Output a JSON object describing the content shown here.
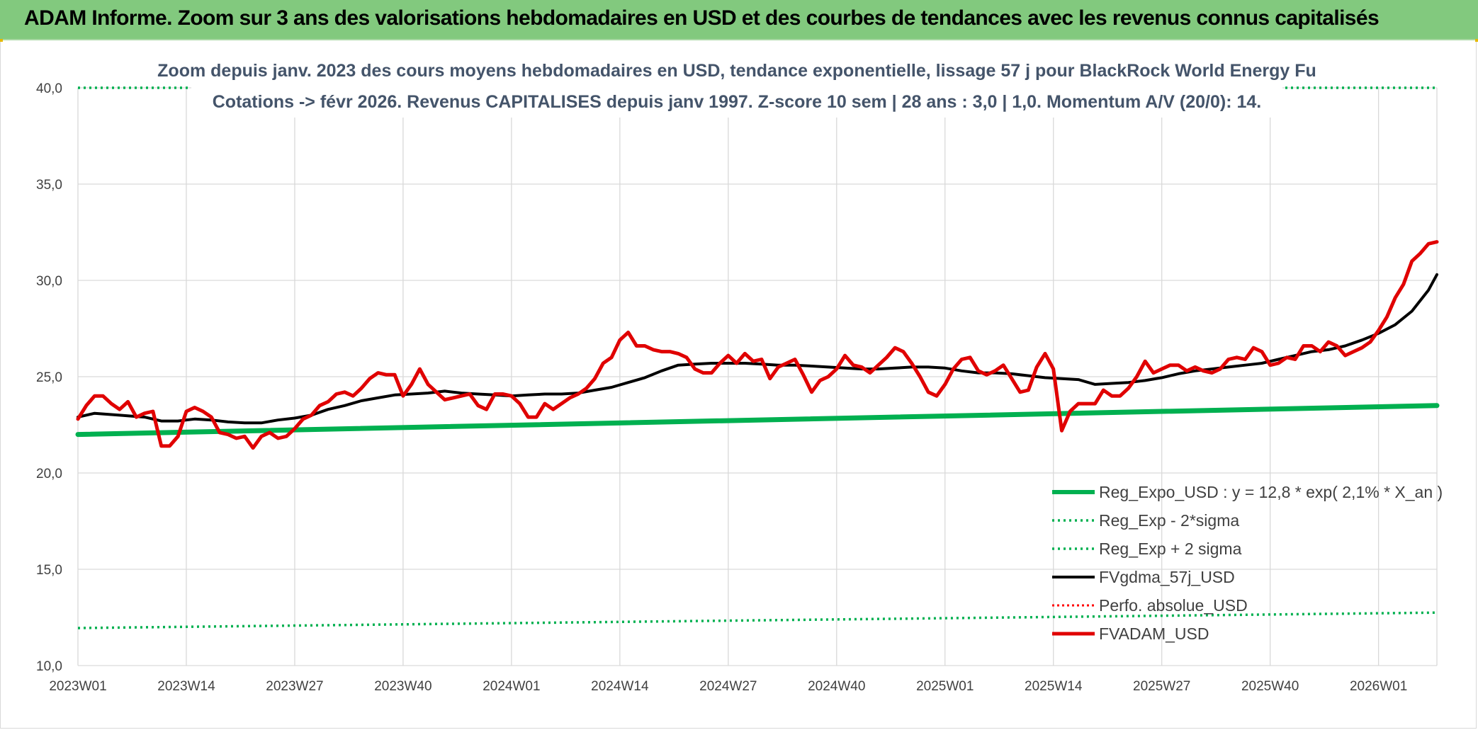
{
  "header": {
    "title": "ADAM Informe. Zoom sur 3 ans des valorisations hebdomadaires en USD et des courbes de tendances avec les revenus connus capitalisés"
  },
  "colors": {
    "banner": "#82c97e",
    "reg_expo": "#00b050",
    "sigma": "#00b050",
    "gdma": "#000000",
    "perfo": "#ff0000",
    "fvadam": "#e00000"
  },
  "chart_data": {
    "type": "line",
    "title_lines": [
      "Zoom depuis janv. 2023 des cours moyens hebdomadaires en USD, tendance exponentielle, lissage 57 j pour BlackRock World Energy Fu",
      "Cotations -> févr 2026. Revenus CAPITALISES depuis janv 1997. Z-score 10 sem | 28 ans : 3,0 | 1,0. Momentum A/V (20/0): 14."
    ],
    "xlabel": "",
    "ylabel": "",
    "ylim": [
      10,
      40
    ],
    "yticks": [
      "10,0",
      "15,0",
      "20,0",
      "25,0",
      "30,0",
      "35,0",
      "40,0"
    ],
    "xticks": [
      "2023W01",
      "2023W14",
      "2023W27",
      "2023W40",
      "2024W01",
      "2024W14",
      "2024W27",
      "2024W40",
      "2025W01",
      "2025W14",
      "2025W27",
      "2025W40",
      "2026W01"
    ],
    "week_count": 164,
    "grid": true,
    "legend_position": "bottom-right",
    "series": [
      {
        "name": "Reg_Expo_USD : y = 12,8 * exp( 2,1% *  X_an )",
        "style": "solid-thick",
        "points": [
          [
            0,
            22.0
          ],
          [
            163,
            23.5
          ]
        ]
      },
      {
        "name": "Reg_Exp - 2*sigma",
        "style": "dotted",
        "points": [
          [
            0,
            11.95
          ],
          [
            163,
            12.75
          ]
        ]
      },
      {
        "name": "Reg_Exp + 2 sigma",
        "style": "dotted",
        "points": [
          [
            0,
            40.0
          ],
          [
            163,
            40.0
          ]
        ]
      },
      {
        "name": "FVgdma_57j_USD",
        "style": "solid",
        "points": [
          [
            0,
            22.9
          ],
          [
            2,
            23.1
          ],
          [
            5,
            23.0
          ],
          [
            8,
            22.9
          ],
          [
            10,
            22.7
          ],
          [
            12,
            22.7
          ],
          [
            14,
            22.8
          ],
          [
            16,
            22.75
          ],
          [
            18,
            22.65
          ],
          [
            20,
            22.6
          ],
          [
            22,
            22.6
          ],
          [
            24,
            22.75
          ],
          [
            26,
            22.85
          ],
          [
            28,
            23.0
          ],
          [
            30,
            23.3
          ],
          [
            32,
            23.5
          ],
          [
            34,
            23.75
          ],
          [
            36,
            23.9
          ],
          [
            38,
            24.05
          ],
          [
            40,
            24.1
          ],
          [
            42,
            24.15
          ],
          [
            44,
            24.25
          ],
          [
            46,
            24.15
          ],
          [
            48,
            24.1
          ],
          [
            50,
            24.05
          ],
          [
            52,
            24.0
          ],
          [
            54,
            24.05
          ],
          [
            56,
            24.1
          ],
          [
            58,
            24.1
          ],
          [
            60,
            24.15
          ],
          [
            62,
            24.3
          ],
          [
            64,
            24.45
          ],
          [
            66,
            24.7
          ],
          [
            68,
            24.95
          ],
          [
            70,
            25.3
          ],
          [
            72,
            25.6
          ],
          [
            74,
            25.65
          ],
          [
            76,
            25.7
          ],
          [
            78,
            25.7
          ],
          [
            80,
            25.7
          ],
          [
            82,
            25.65
          ],
          [
            84,
            25.6
          ],
          [
            86,
            25.6
          ],
          [
            88,
            25.55
          ],
          [
            90,
            25.5
          ],
          [
            92,
            25.45
          ],
          [
            94,
            25.4
          ],
          [
            96,
            25.4
          ],
          [
            98,
            25.45
          ],
          [
            100,
            25.5
          ],
          [
            102,
            25.5
          ],
          [
            104,
            25.45
          ],
          [
            106,
            25.3
          ],
          [
            108,
            25.2
          ],
          [
            110,
            25.2
          ],
          [
            112,
            25.15
          ],
          [
            114,
            25.05
          ],
          [
            116,
            24.95
          ],
          [
            118,
            24.9
          ],
          [
            120,
            24.85
          ],
          [
            122,
            24.6
          ],
          [
            124,
            24.65
          ],
          [
            126,
            24.7
          ],
          [
            128,
            24.8
          ],
          [
            130,
            24.95
          ],
          [
            132,
            25.15
          ],
          [
            134,
            25.3
          ],
          [
            136,
            25.4
          ],
          [
            138,
            25.5
          ],
          [
            140,
            25.6
          ],
          [
            142,
            25.7
          ],
          [
            144,
            25.9
          ],
          [
            146,
            26.1
          ],
          [
            148,
            26.3
          ],
          [
            150,
            26.4
          ],
          [
            152,
            26.6
          ],
          [
            154,
            26.9
          ],
          [
            156,
            27.25
          ],
          [
            158,
            27.7
          ],
          [
            160,
            28.4
          ],
          [
            162,
            29.5
          ],
          [
            163,
            30.3
          ]
        ]
      },
      {
        "name": "Perfo. absolue_USD",
        "style": "dotted-red",
        "points": []
      },
      {
        "name": "FVADAM_USD",
        "style": "solid-thick-red",
        "points": [
          [
            0,
            22.8
          ],
          [
            1,
            23.5
          ],
          [
            2,
            24.0
          ],
          [
            3,
            24.0
          ],
          [
            4,
            23.6
          ],
          [
            5,
            23.3
          ],
          [
            6,
            23.7
          ],
          [
            7,
            22.9
          ],
          [
            8,
            23.1
          ],
          [
            9,
            23.2
          ],
          [
            10,
            21.4
          ],
          [
            11,
            21.4
          ],
          [
            12,
            21.9
          ],
          [
            13,
            23.2
          ],
          [
            14,
            23.4
          ],
          [
            15,
            23.2
          ],
          [
            16,
            22.9
          ],
          [
            17,
            22.1
          ],
          [
            18,
            22.0
          ],
          [
            19,
            21.8
          ],
          [
            20,
            21.9
          ],
          [
            21,
            21.3
          ],
          [
            22,
            21.9
          ],
          [
            23,
            22.1
          ],
          [
            24,
            21.8
          ],
          [
            25,
            21.9
          ],
          [
            26,
            22.3
          ],
          [
            27,
            22.8
          ],
          [
            28,
            23.0
          ],
          [
            29,
            23.5
          ],
          [
            30,
            23.7
          ],
          [
            31,
            24.1
          ],
          [
            32,
            24.2
          ],
          [
            33,
            24.0
          ],
          [
            34,
            24.4
          ],
          [
            35,
            24.9
          ],
          [
            36,
            25.2
          ],
          [
            37,
            25.1
          ],
          [
            38,
            25.1
          ],
          [
            39,
            24.0
          ],
          [
            40,
            24.6
          ],
          [
            41,
            25.4
          ],
          [
            42,
            24.6
          ],
          [
            43,
            24.2
          ],
          [
            44,
            23.8
          ],
          [
            45,
            23.9
          ],
          [
            46,
            24.0
          ],
          [
            47,
            24.1
          ],
          [
            48,
            23.5
          ],
          [
            49,
            23.3
          ],
          [
            50,
            24.1
          ],
          [
            51,
            24.1
          ],
          [
            52,
            24.0
          ],
          [
            53,
            23.6
          ],
          [
            54,
            22.9
          ],
          [
            55,
            22.9
          ],
          [
            56,
            23.6
          ],
          [
            57,
            23.3
          ],
          [
            58,
            23.6
          ],
          [
            59,
            23.9
          ],
          [
            60,
            24.1
          ],
          [
            61,
            24.4
          ],
          [
            62,
            24.9
          ],
          [
            63,
            25.7
          ],
          [
            64,
            26.0
          ],
          [
            65,
            26.9
          ],
          [
            66,
            27.3
          ],
          [
            67,
            26.6
          ],
          [
            68,
            26.6
          ],
          [
            69,
            26.4
          ],
          [
            70,
            26.3
          ],
          [
            71,
            26.3
          ],
          [
            72,
            26.2
          ],
          [
            73,
            26.0
          ],
          [
            74,
            25.4
          ],
          [
            75,
            25.2
          ],
          [
            76,
            25.2
          ],
          [
            77,
            25.7
          ],
          [
            78,
            26.1
          ],
          [
            79,
            25.7
          ],
          [
            80,
            26.2
          ],
          [
            81,
            25.8
          ],
          [
            82,
            25.9
          ],
          [
            83,
            24.9
          ],
          [
            84,
            25.5
          ],
          [
            85,
            25.7
          ],
          [
            86,
            25.9
          ],
          [
            87,
            25.1
          ],
          [
            88,
            24.2
          ],
          [
            89,
            24.8
          ],
          [
            90,
            25.0
          ],
          [
            91,
            25.4
          ],
          [
            92,
            26.1
          ],
          [
            93,
            25.6
          ],
          [
            94,
            25.5
          ],
          [
            95,
            25.2
          ],
          [
            96,
            25.6
          ],
          [
            97,
            26.0
          ],
          [
            98,
            26.5
          ],
          [
            99,
            26.3
          ],
          [
            100,
            25.7
          ],
          [
            101,
            25.0
          ],
          [
            102,
            24.2
          ],
          [
            103,
            24.0
          ],
          [
            104,
            24.6
          ],
          [
            105,
            25.4
          ],
          [
            106,
            25.9
          ],
          [
            107,
            26.0
          ],
          [
            108,
            25.3
          ],
          [
            109,
            25.1
          ],
          [
            110,
            25.3
          ],
          [
            111,
            25.6
          ],
          [
            112,
            24.9
          ],
          [
            113,
            24.2
          ],
          [
            114,
            24.3
          ],
          [
            115,
            25.5
          ],
          [
            116,
            26.2
          ],
          [
            117,
            25.4
          ],
          [
            118,
            22.2
          ],
          [
            119,
            23.2
          ],
          [
            120,
            23.6
          ],
          [
            121,
            23.6
          ],
          [
            122,
            23.6
          ],
          [
            123,
            24.3
          ],
          [
            124,
            24.0
          ],
          [
            125,
            24.0
          ],
          [
            126,
            24.4
          ],
          [
            127,
            25.0
          ],
          [
            128,
            25.8
          ],
          [
            129,
            25.2
          ],
          [
            130,
            25.4
          ],
          [
            131,
            25.6
          ],
          [
            132,
            25.6
          ],
          [
            133,
            25.3
          ],
          [
            134,
            25.5
          ],
          [
            135,
            25.3
          ],
          [
            136,
            25.2
          ],
          [
            137,
            25.4
          ],
          [
            138,
            25.9
          ],
          [
            139,
            26.0
          ],
          [
            140,
            25.9
          ],
          [
            141,
            26.5
          ],
          [
            142,
            26.3
          ],
          [
            143,
            25.6
          ],
          [
            144,
            25.7
          ],
          [
            145,
            26.0
          ],
          [
            146,
            25.9
          ],
          [
            147,
            26.6
          ],
          [
            148,
            26.6
          ],
          [
            149,
            26.3
          ],
          [
            150,
            26.8
          ],
          [
            151,
            26.6
          ],
          [
            152,
            26.1
          ],
          [
            153,
            26.3
          ],
          [
            154,
            26.5
          ],
          [
            155,
            26.8
          ],
          [
            156,
            27.4
          ],
          [
            157,
            28.1
          ],
          [
            158,
            29.1
          ],
          [
            159,
            29.8
          ],
          [
            160,
            31.0
          ],
          [
            161,
            31.4
          ],
          [
            162,
            31.9
          ],
          [
            163,
            32.0
          ]
        ]
      }
    ]
  }
}
